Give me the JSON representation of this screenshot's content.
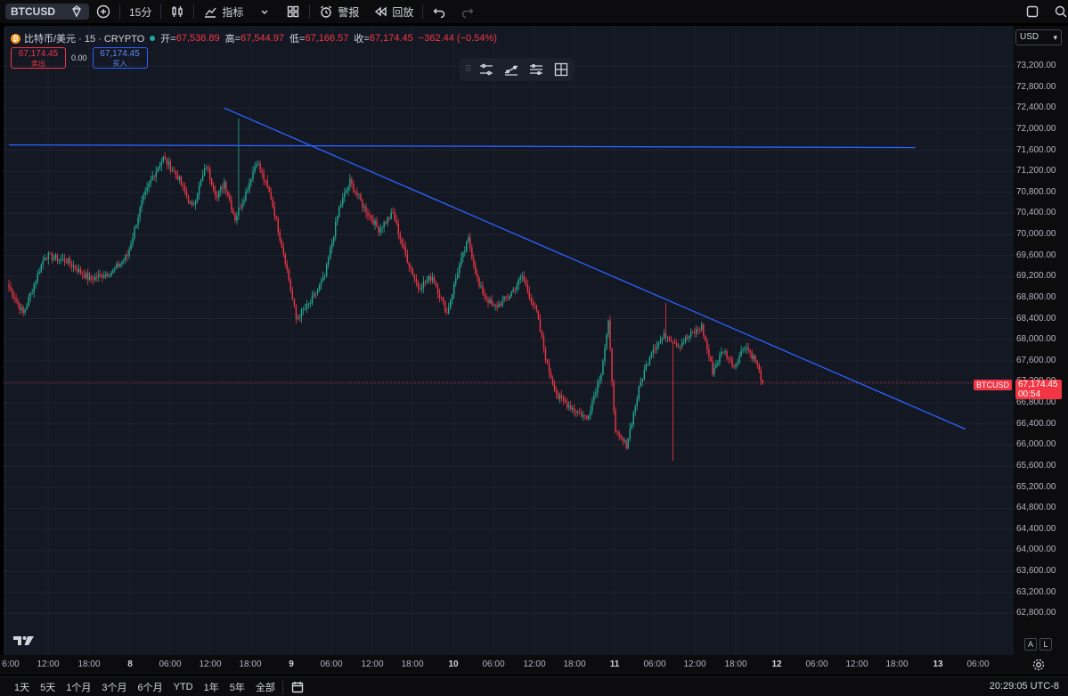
{
  "toolbar": {
    "symbol": "BTCUSD",
    "interval": "15分",
    "indicators_label": "指标",
    "alert_label": "警报",
    "replay_label": "回放"
  },
  "legend": {
    "name": "比特币/美元 · 15 · CRYPTO",
    "open_label": "开=",
    "open": "67,536.89",
    "high_label": "高=",
    "high": "67,544.97",
    "low_label": "低=",
    "low": "67,166.57",
    "close_label": "收=",
    "close": "67,174.45",
    "change": "−362.44 (−0.54%)"
  },
  "trade": {
    "sell_price": "67,174.45",
    "sell_label": "卖出",
    "spread": "0.00",
    "buy_price": "67,174.45",
    "buy_label": "买入"
  },
  "price_axis": {
    "currency": "USD",
    "ticks": [
      "73,200.00",
      "72,800.00",
      "72,400.00",
      "72,000.00",
      "71,600.00",
      "71,200.00",
      "70,800.00",
      "70,400.00",
      "70,000.00",
      "69,600.00",
      "69,200.00",
      "68,800.00",
      "68,400.00",
      "68,000.00",
      "67,600.00",
      "67,200.00",
      "66,800.00",
      "66,400.00",
      "66,000.00",
      "65,600.00",
      "65,200.00",
      "64,800.00",
      "64,400.00",
      "64,000.00",
      "63,600.00",
      "63,200.00",
      "62,800.00"
    ],
    "last_price": "67,174.45",
    "countdown": "00:54",
    "symbol_tag": "BTCUSD",
    "auto_btn": "A",
    "log_btn": "L"
  },
  "time_axis": {
    "ticks": [
      {
        "label": "6:00"
      },
      {
        "label": "12:00"
      },
      {
        "label": "18:00"
      },
      {
        "label": "8",
        "bold": true
      },
      {
        "label": "06:00"
      },
      {
        "label": "12:00"
      },
      {
        "label": "18:00"
      },
      {
        "label": "9",
        "bold": true
      },
      {
        "label": "06:00"
      },
      {
        "label": "12:00"
      },
      {
        "label": "18:00"
      },
      {
        "label": "10",
        "bold": true
      },
      {
        "label": "06:00"
      },
      {
        "label": "12:00"
      },
      {
        "label": "18:00"
      },
      {
        "label": "11",
        "bold": true
      },
      {
        "label": "06:00"
      },
      {
        "label": "12:00"
      },
      {
        "label": "18:00"
      },
      {
        "label": "12",
        "bold": true
      },
      {
        "label": "06:00"
      },
      {
        "label": "12:00"
      },
      {
        "label": "18:00"
      },
      {
        "label": "13",
        "bold": true
      },
      {
        "label": "06:00"
      }
    ]
  },
  "bottom": {
    "ranges": [
      "1天",
      "5天",
      "1个月",
      "3个月",
      "6个月",
      "YTD",
      "1年",
      "5年",
      "全部"
    ],
    "clock": "20:29:05 UTC-8"
  },
  "colors": {
    "up": "#22ab94",
    "down": "#f23645",
    "trendline": "#2962ff",
    "background": "#141823"
  },
  "chart_data": {
    "type": "candlestick",
    "symbol": "BTCUSD",
    "interval": "15",
    "ylim": [
      62500,
      73500
    ],
    "x_unit": "15-minute bars",
    "bars_shown": 373,
    "anchors": [
      {
        "bar": 0,
        "price": 69000
      },
      {
        "bar": 8,
        "price": 68500
      },
      {
        "bar": 20,
        "price": 69600
      },
      {
        "bar": 32,
        "price": 69500
      },
      {
        "bar": 45,
        "price": 69150
      },
      {
        "bar": 58,
        "price": 69300
      },
      {
        "bar": 66,
        "price": 69600
      },
      {
        "bar": 74,
        "price": 70600
      },
      {
        "bar": 80,
        "price": 71100
      },
      {
        "bar": 86,
        "price": 71450
      },
      {
        "bar": 94,
        "price": 71100
      },
      {
        "bar": 102,
        "price": 70500
      },
      {
        "bar": 110,
        "price": 71300
      },
      {
        "bar": 116,
        "price": 70700
      },
      {
        "bar": 120,
        "price": 71000
      },
      {
        "bar": 126,
        "price": 70300
      },
      {
        "bar": 132,
        "price": 70800
      },
      {
        "bar": 138,
        "price": 71400
      },
      {
        "bar": 146,
        "price": 70700
      },
      {
        "bar": 154,
        "price": 69500
      },
      {
        "bar": 160,
        "price": 68400
      },
      {
        "bar": 168,
        "price": 68700
      },
      {
        "bar": 176,
        "price": 69200
      },
      {
        "bar": 184,
        "price": 70500
      },
      {
        "bar": 190,
        "price": 71000
      },
      {
        "bar": 198,
        "price": 70500
      },
      {
        "bar": 206,
        "price": 70100
      },
      {
        "bar": 214,
        "price": 70400
      },
      {
        "bar": 220,
        "price": 69700
      },
      {
        "bar": 228,
        "price": 69000
      },
      {
        "bar": 236,
        "price": 69200
      },
      {
        "bar": 244,
        "price": 68500
      },
      {
        "bar": 250,
        "price": 69300
      },
      {
        "bar": 256,
        "price": 69900
      },
      {
        "bar": 262,
        "price": 69000
      },
      {
        "bar": 270,
        "price": 68600
      },
      {
        "bar": 278,
        "price": 68800
      },
      {
        "bar": 286,
        "price": 69200
      },
      {
        "bar": 294,
        "price": 68500
      },
      {
        "bar": 300,
        "price": 67500
      },
      {
        "bar": 306,
        "price": 66900
      },
      {
        "bar": 314,
        "price": 66700
      },
      {
        "bar": 322,
        "price": 66500
      },
      {
        "bar": 330,
        "price": 67400
      },
      {
        "bar": 334,
        "price": 68300
      },
      {
        "bar": 338,
        "price": 66200
      },
      {
        "bar": 344,
        "price": 66000
      },
      {
        "bar": 352,
        "price": 67200
      },
      {
        "bar": 358,
        "price": 67800
      },
      {
        "bar": 366,
        "price": 68100
      },
      {
        "bar": 373,
        "price": 67900
      },
      {
        "bar": 386,
        "price": 68250
      },
      {
        "bar": 392,
        "price": 67400
      },
      {
        "bar": 398,
        "price": 67800
      },
      {
        "bar": 404,
        "price": 67500
      },
      {
        "bar": 410,
        "price": 67900
      },
      {
        "bar": 416,
        "price": 67600
      },
      {
        "bar": 420,
        "price": 67174.45
      }
    ],
    "spikes": [
      {
        "bar": 128,
        "high": 72200
      },
      {
        "bar": 366,
        "high": 68700
      },
      {
        "bar": 370,
        "low": 65700
      }
    ],
    "last_price": 67174.45,
    "trendlines": [
      {
        "name": "horizontal resistance",
        "from": {
          "bar": 0,
          "price": 71700
        },
        "to": {
          "bar": 505,
          "price": 71650
        }
      },
      {
        "name": "descending trendline",
        "from": {
          "bar": 120,
          "price": 72400
        },
        "to": {
          "bar": 533,
          "price": 66300
        }
      }
    ]
  }
}
